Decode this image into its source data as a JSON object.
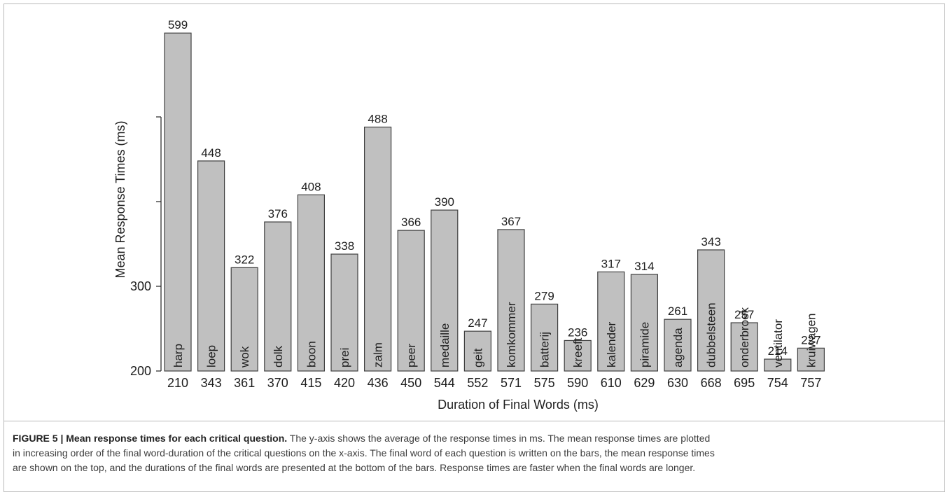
{
  "chart_data": {
    "type": "bar",
    "ylabel": "Mean Response Times (ms)",
    "xlabel": "Duration of Final Words (ms)",
    "ylim": [
      200,
      600
    ],
    "yticks": [
      200,
      300,
      400,
      500
    ],
    "ytick_labels": [
      "200",
      "300",
      "",
      ""
    ],
    "grid": false,
    "bar_color": "#c0c0c0",
    "bar_edge_color": "#404040",
    "bars": [
      {
        "word": "harp",
        "duration": "210",
        "value": 599
      },
      {
        "word": "loep",
        "duration": "343",
        "value": 448
      },
      {
        "word": "wok",
        "duration": "361",
        "value": 322
      },
      {
        "word": "dolk",
        "duration": "370",
        "value": 376
      },
      {
        "word": "boon",
        "duration": "415",
        "value": 408
      },
      {
        "word": "prei",
        "duration": "420",
        "value": 338
      },
      {
        "word": "zalm",
        "duration": "436",
        "value": 488
      },
      {
        "word": "peer",
        "duration": "450",
        "value": 366
      },
      {
        "word": "medaille",
        "duration": "544",
        "value": 390
      },
      {
        "word": "geit",
        "duration": "552",
        "value": 247
      },
      {
        "word": "komkommer",
        "duration": "571",
        "value": 367
      },
      {
        "word": "batterij",
        "duration": "575",
        "value": 279
      },
      {
        "word": "kreeft",
        "duration": "590",
        "value": 236
      },
      {
        "word": "kalender",
        "duration": "610",
        "value": 317
      },
      {
        "word": "piramide",
        "duration": "629",
        "value": 314
      },
      {
        "word": "agenda",
        "duration": "630",
        "value": 261
      },
      {
        "word": "dubbelsteen",
        "duration": "668",
        "value": 343
      },
      {
        "word": "onderbroek",
        "duration": "695",
        "value": 257
      },
      {
        "word": "ventilator",
        "duration": "754",
        "value": 214
      },
      {
        "word": "kruiwagen",
        "duration": "757",
        "value": 227
      }
    ]
  },
  "caption": {
    "label": "FIGURE 5 | Mean response times for each critical question.",
    "line1": " The y-axis shows the average of the response times in ms. The mean response times are plotted",
    "line2": "in increasing order of the final word-duration of the critical questions on the x-axis. The final word of each question is written on the bars, the mean response times",
    "line3": "are shown on the top, and the durations of the final words are presented at the bottom of the bars. Response times are faster when the final words are longer."
  }
}
